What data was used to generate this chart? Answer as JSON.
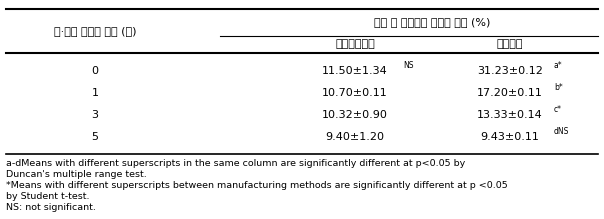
{
  "col1_header": "놉·해동 전처리 횟수 (횟)",
  "col2_header_top": "착유 후 들깨박의 조지방 함량 (%)",
  "col2_sub1": "고온북음압착",
  "col2_sub2": "저온압착",
  "rows": [
    {
      "freq": "0",
      "hot": "11.50±1.34",
      "hot_sup": "NS",
      "cold": "31.23±0.12",
      "cold_sup": "a*"
    },
    {
      "freq": "1",
      "hot": "10.70±0.11",
      "hot_sup": "",
      "cold": "17.20±0.11",
      "cold_sup": "b*"
    },
    {
      "freq": "3",
      "hot": "10.32±0.90",
      "hot_sup": "",
      "cold": "13.33±0.14",
      "cold_sup": "c*"
    },
    {
      "freq": "5",
      "hot": "9.40±1.20",
      "hot_sup": "",
      "cold": "9.43±0.11",
      "cold_sup": "dNS"
    }
  ],
  "footnote_lines": [
    "a-dMeans with different superscripts in the same column are significantly different at p<0.05 by",
    "Duncan's multiple range test.",
    "*Means with different superscripts between manufacturing methods are significantly different at p <0.05",
    "by Student t-test.",
    "NS: not significant."
  ],
  "bg_color": "#ffffff",
  "font_size_main": 8.0,
  "font_size_footnote": 6.8,
  "font_size_super": 5.5
}
